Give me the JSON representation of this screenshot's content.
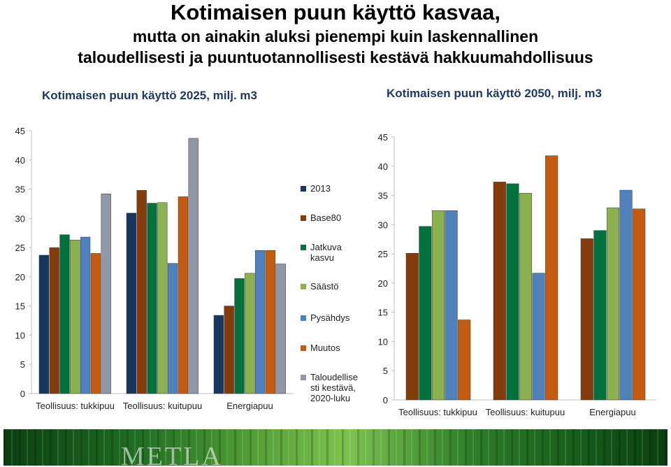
{
  "title": {
    "line1": "Kotimaisen puun käyttö kasvaa,",
    "line2": "mutta on ainakin aluksi pienempi kuin laskennallinen",
    "line3": "taloudellisesti ja puuntuotannollisesti kestävä hakkuumahdollisuus"
  },
  "footer": {
    "logo": "METLA"
  },
  "colors": {
    "2013": "#17375e",
    "Base80": "#843c0c",
    "Jatkuva kasvu": "#00703c",
    "Säästö": "#8cb150",
    "Pysähdys": "#4f81bd",
    "Muutos": "#c55a11",
    "Taloudellisesti kestävä": "#8e98a6"
  },
  "legend": [
    {
      "label": "2013",
      "color": "#17375e"
    },
    {
      "label": "Base80",
      "color": "#843c0c"
    },
    {
      "label": "Jatkuva kasvu",
      "color": "#00703c"
    },
    {
      "label": "Säästö",
      "color": "#8cb150"
    },
    {
      "label": "Pysähdys",
      "color": "#4f81bd"
    },
    {
      "label": "Muutos",
      "color": "#c55a11"
    },
    {
      "label": "Taloudellise sti kestävä, 2020-luku",
      "color": "#8e98a6"
    }
  ],
  "chart_data": [
    {
      "type": "bar",
      "title": "Kotimaisen puun käyttö 2025, milj. m3",
      "categories": [
        "Teollisuus: tukkipuu",
        "Teollisuus: kuitupuu",
        "Energiapuu"
      ],
      "ylim": [
        0,
        45
      ],
      "yticks": [
        "0",
        "5",
        "10",
        "15",
        "20",
        "25",
        "30",
        "35",
        "40",
        "45"
      ],
      "grid": false,
      "series": [
        {
          "name": "2013",
          "values": [
            23.7,
            30.9,
            13.4
          ]
        },
        {
          "name": "Base80",
          "values": [
            25.0,
            34.8,
            15.0
          ]
        },
        {
          "name": "Jatkuva kasvu",
          "values": [
            27.2,
            32.6,
            19.7
          ]
        },
        {
          "name": "Säästö",
          "values": [
            26.3,
            32.7,
            20.6
          ]
        },
        {
          "name": "Pysähdys",
          "values": [
            26.8,
            22.3,
            24.5
          ]
        },
        {
          "name": "Muutos",
          "values": [
            24.0,
            33.7,
            24.5
          ]
        },
        {
          "name": "Taloudellise sti kestävä, 2020-luku",
          "values": [
            34.2,
            43.7,
            22.2
          ]
        }
      ]
    },
    {
      "type": "bar",
      "title": "Kotimaisen puun käyttö 2050, milj. m3",
      "categories": [
        "Teollisuus: tukkipuu",
        "Teollisuus: kuitupuu",
        "Energiapuu"
      ],
      "ylim": [
        0,
        45
      ],
      "yticks": [
        "0",
        "5",
        "10",
        "15",
        "20",
        "25",
        "30",
        "35",
        "40",
        "45"
      ],
      "grid": false,
      "series": [
        {
          "name": "Base80",
          "values": [
            25.1,
            37.3,
            27.6
          ]
        },
        {
          "name": "Jatkuva kasvu",
          "values": [
            29.7,
            37.0,
            29.0
          ]
        },
        {
          "name": "Säästö",
          "values": [
            32.4,
            35.4,
            32.9
          ]
        },
        {
          "name": "Pysähdys",
          "values": [
            32.4,
            21.7,
            35.9
          ]
        },
        {
          "name": "Muutos",
          "values": [
            13.7,
            41.8,
            32.7
          ]
        }
      ]
    }
  ]
}
